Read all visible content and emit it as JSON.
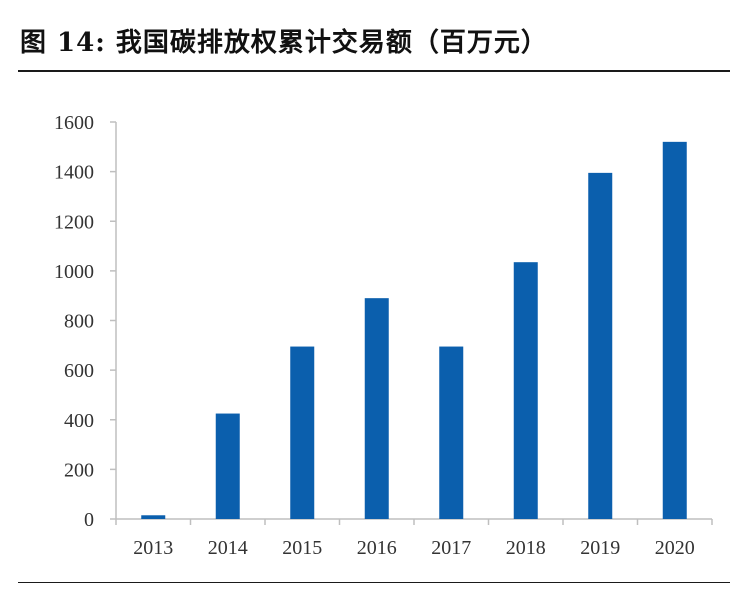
{
  "figure": {
    "title": "图 14: 我国碳排放权累计交易额（百万元）"
  },
  "colors": {
    "bar": "#0b5fad",
    "axis": "#bfbfbf",
    "text": "#333333"
  },
  "chart_data": {
    "type": "bar",
    "title": "图 14: 我国碳排放权累计交易额（百万元）",
    "xlabel": "",
    "ylabel": "",
    "categories": [
      "2013",
      "2014",
      "2015",
      "2016",
      "2017",
      "2018",
      "2019",
      "2020"
    ],
    "values": [
      15,
      425,
      695,
      890,
      695,
      1035,
      1395,
      1520
    ],
    "ylim": [
      0,
      1600
    ],
    "yticks": [
      0,
      200,
      400,
      600,
      800,
      1000,
      1200,
      1400,
      1600
    ],
    "grid": false,
    "legend": "none"
  }
}
